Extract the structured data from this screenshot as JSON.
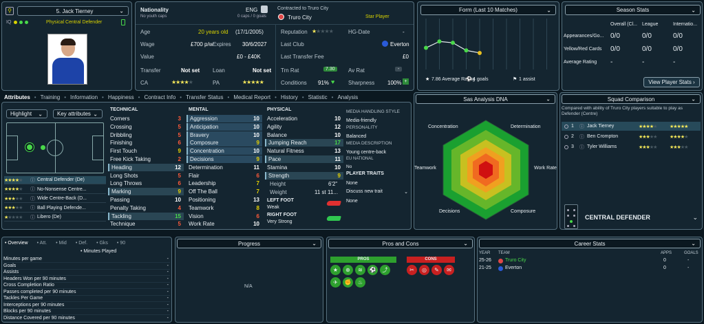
{
  "player": {
    "number_name": "5. Jack Tierney",
    "role": "Physical Central Defender",
    "iq": "IQ"
  },
  "info": {
    "nationality_label": "Nationality",
    "nationality_value": "ENG",
    "youth_caps": "No youth caps",
    "caps": "0 caps / 0 goals",
    "contracted_label": "Contracted to Truro City",
    "club": "Truro City",
    "status": "Star Player",
    "age_label": "Age",
    "age_value": "20 years old",
    "dob": "(17/1/2005)",
    "reputation_label": "Reputation",
    "hgdate_label": "HG-Date",
    "hgdate_value": "-",
    "wage_label": "Wage",
    "wage_value": "£700 p/w",
    "expires_label": "Expires",
    "expires_value": "30/6/2027",
    "lastclub_label": "Last Club",
    "lastclub_value": "Everton",
    "value_label": "Value",
    "value_value": "£0 - £40K",
    "transfer_fee_label": "Last Transfer Fee",
    "transfer_fee_value": "£0",
    "transfer_label": "Transfer",
    "transfer_value": "Not set",
    "loan_label": "Loan",
    "loan_value": "Not set",
    "trnrat_label": "Trn Rat",
    "trnrat_value": "7.30",
    "avrat_label": "Av Rat",
    "avrat_value": "-",
    "ca_label": "CA",
    "pa_label": "PA",
    "conditions_label": "Conditions",
    "conditions_value": "91%",
    "sharpness_label": "Sharpness",
    "sharpness_value": "100%"
  },
  "form": {
    "title": "Form (Last 10 Matches)",
    "avg_value": "7.86",
    "avg_label": "Average Rating",
    "goals": "4 goals",
    "assists": "1 assist",
    "points": [
      7.7,
      8.2,
      8.1,
      7.5,
      7.3
    ]
  },
  "season": {
    "title": "Season Stats",
    "col1": "Overall (Cl...",
    "col2": "League",
    "col3": "Internatio...",
    "rows": [
      {
        "label": "Appearances/Go...",
        "v1": "0/0",
        "v2": "0/0",
        "v3": "0/0"
      },
      {
        "label": "Yellow/Red Cards",
        "v1": "0/0",
        "v2": "0/0",
        "v3": "0/0"
      },
      {
        "label": "Average Rating",
        "v1": "-",
        "v2": "-",
        "v3": "-"
      }
    ],
    "button": "View Player Stats"
  },
  "tabs": [
    "Attributes",
    "Training",
    "Information",
    "Happiness",
    "Contract Info",
    "Transfer Status",
    "Medical Report",
    "History",
    "Statistic",
    "Analysis"
  ],
  "highlight": "Highlight",
  "key_attributes": "Key attributes",
  "roles": [
    "Central Defender (De)",
    "No-Nonsense Centre...",
    "Wide Centre-Back (D...",
    "Ball Playing Defende...",
    "Libero (De)"
  ],
  "technical": {
    "title": "TECHNICAL",
    "items": [
      [
        "Corners",
        "3"
      ],
      [
        "Crossing",
        "5"
      ],
      [
        "Dribbling",
        "5"
      ],
      [
        "Finishing",
        "6"
      ],
      [
        "First Touch",
        "9"
      ],
      [
        "Free Kick Taking",
        "2"
      ],
      [
        "Heading",
        "12"
      ],
      [
        "Long Shots",
        "5"
      ],
      [
        "Long Throws",
        "6"
      ],
      [
        "Marking",
        "9"
      ],
      [
        "Passing",
        "10"
      ],
      [
        "Penalty Taking",
        "4"
      ],
      [
        "Tackling",
        "15"
      ],
      [
        "Technique",
        "5"
      ]
    ]
  },
  "mental": {
    "title": "MENTAL",
    "items": [
      [
        "Aggression",
        "10"
      ],
      [
        "Anticipation",
        "10"
      ],
      [
        "Bravery",
        "10"
      ],
      [
        "Composure",
        "9"
      ],
      [
        "Concentration",
        "10"
      ],
      [
        "Decisions",
        "9"
      ],
      [
        "Determination",
        "11"
      ],
      [
        "Flair",
        "6"
      ],
      [
        "Leadership",
        "7"
      ],
      [
        "Off The Ball",
        "7"
      ],
      [
        "Positioning",
        "13"
      ],
      [
        "Teamwork",
        "8"
      ],
      [
        "Vision",
        "6"
      ],
      [
        "Work Rate",
        "10"
      ]
    ]
  },
  "physical": {
    "title": "PHYSICAL",
    "items": [
      [
        "Acceleration",
        "10"
      ],
      [
        "Agility",
        "12"
      ],
      [
        "Balance",
        "10"
      ],
      [
        "Jumping Reach",
        "17"
      ],
      [
        "Natural Fitness",
        "13"
      ],
      [
        "Pace",
        "11"
      ],
      [
        "Stamina",
        "10"
      ],
      [
        "Strength",
        "9"
      ]
    ],
    "height_label": "Height",
    "height_value": "6'2\"",
    "weight_label": "Weight",
    "weight_value": "11 st 11...",
    "left_foot_label": "LEFT FOOT",
    "left_foot_value": "Weak",
    "right_foot_label": "RIGHT FOOT",
    "right_foot_value": "Very Strong"
  },
  "media": {
    "style_title": "MEDIA HANDLING STYLE",
    "style_value": "Media-friendly",
    "personality_title": "PERSONALITY",
    "personality_value": "Balanced",
    "desc_title": "MEDIA DESCRIPTION",
    "desc_value": "Young centre-back",
    "eu_title": "EU NATIONAL",
    "eu_value": "No",
    "traits_title": "PLAYER TRAITS",
    "traits_value": "None",
    "discuss": "Discuss new trait",
    "discuss_value": "None"
  },
  "dna": {
    "title": "Sas Analysis DNA",
    "labels": [
      "Concentration",
      "Determination",
      "Work Rate",
      "Composure",
      "Decisions",
      "Teamwork"
    ]
  },
  "squad": {
    "title": "Squad Comparison",
    "desc": "Compared with ability of Truro City players suitable to play as Defender (Centre)",
    "players": [
      {
        "rank": "1",
        "name": "Jack Tierney"
      },
      {
        "rank": "2",
        "name": "Ben Crompton"
      },
      {
        "rank": "3",
        "name": "Tyler Williams"
      }
    ],
    "position": "CENTRAL DEFENDER"
  },
  "overview": {
    "tabs": [
      "Overview",
      "Att.",
      "Mid",
      "Def.",
      "Gks",
      "90"
    ],
    "minutes_played": "Minutes Played",
    "rows": [
      "Minutes per game",
      "Goals",
      "Assists",
      "Headers Won per 90 minutes",
      "Cross Completion Ratio",
      "Passes completed per 90 minutes",
      "Tackles Per Game",
      "Interceptions per 90 minutes",
      "Blocks per 90 minutes",
      "Distance Covered per 90 minutes"
    ],
    "dash": "-"
  },
  "progress": {
    "title": "Progress",
    "na": "N/A"
  },
  "proscons": {
    "title": "Pros and Cons",
    "pros": "PROS",
    "cons": "CONS"
  },
  "career": {
    "title": "Career Stats",
    "year": "YEAR",
    "team": "TEAM",
    "apps": "APPS",
    "goals": "GOALS",
    "rows": [
      {
        "year": "25-26",
        "team": "Truro City",
        "apps": "0",
        "goals": "-"
      },
      {
        "year": "21-25",
        "team": "Everton",
        "apps": "0",
        "goals": "-"
      }
    ]
  }
}
